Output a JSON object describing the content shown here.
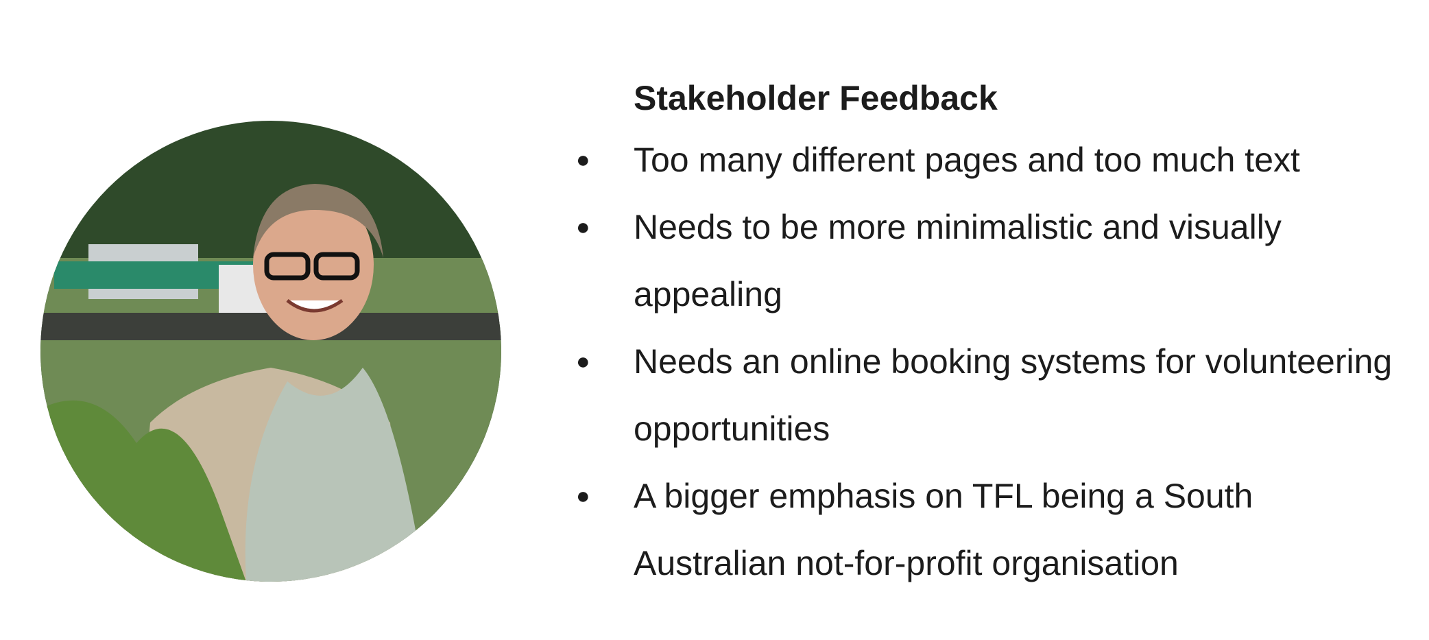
{
  "title": "Stakeholder Feedback",
  "items": [
    "Too many different pages and too much text",
    "Needs to be more minimalistic and visually appealing",
    "Needs an online booking systems for volunteering opportunities",
    "A bigger emphasis on TFL being a South Australian not-for-profit organisation"
  ]
}
